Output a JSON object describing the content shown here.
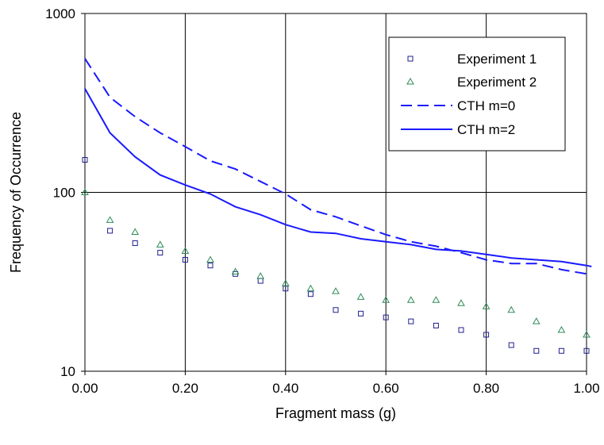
{
  "chart_data": {
    "type": "scatter",
    "xlabel": "Fragment mass (g)",
    "ylabel": "Frequency of Occurrence",
    "xlim": [
      0,
      1
    ],
    "ylim": [
      10,
      1000
    ],
    "yscale": "log",
    "x_ticks": [
      "0.00",
      "0.20",
      "0.40",
      "0.60",
      "0.80",
      "1.00"
    ],
    "y_ticks": [
      "10",
      "100",
      "1000"
    ],
    "grid": true,
    "legend_position": "top-right",
    "series": [
      {
        "name": "Experiment 1",
        "kind": "markers",
        "marker": "square",
        "color": "#1f1f8f",
        "x": [
          0.0,
          0.05,
          0.1,
          0.15,
          0.2,
          0.25,
          0.3,
          0.35,
          0.4,
          0.45,
          0.5,
          0.55,
          0.6,
          0.65,
          0.7,
          0.75,
          0.8,
          0.85,
          0.9,
          0.95,
          1.0
        ],
        "y": [
          152,
          61,
          52,
          46,
          42,
          39,
          35,
          32,
          29,
          27,
          22,
          21,
          20,
          19,
          18,
          17,
          16,
          14,
          13,
          13,
          13
        ]
      },
      {
        "name": "Experiment 2",
        "kind": "markers",
        "marker": "triangle",
        "color": "#2e8b57",
        "x": [
          0.0,
          0.05,
          0.1,
          0.15,
          0.2,
          0.25,
          0.3,
          0.35,
          0.4,
          0.45,
          0.5,
          0.55,
          0.6,
          0.65,
          0.7,
          0.75,
          0.8,
          0.85,
          0.9,
          0.95,
          1.0
        ],
        "y": [
          100,
          70,
          60,
          51,
          47,
          42,
          36,
          34,
          31,
          29,
          28,
          26,
          25,
          25,
          25,
          24,
          23,
          22,
          19,
          17,
          16
        ]
      },
      {
        "name": "CTH  m=0",
        "kind": "line",
        "dash": true,
        "color": "#1a1aff",
        "x": [
          0.0,
          0.05,
          0.1,
          0.15,
          0.2,
          0.25,
          0.3,
          0.35,
          0.4,
          0.45,
          0.5,
          0.55,
          0.6,
          0.65,
          0.7,
          0.75,
          0.8,
          0.85,
          0.9,
          0.95,
          1.0
        ],
        "y": [
          560,
          340,
          265,
          215,
          180,
          150,
          135,
          115,
          98,
          80,
          73,
          65,
          58,
          53,
          50,
          46,
          42,
          40,
          40,
          37,
          35
        ]
      },
      {
        "name": "CTH  m=2",
        "kind": "line",
        "dash": false,
        "color": "#1a1aff",
        "x": [
          0.0,
          0.05,
          0.1,
          0.15,
          0.2,
          0.25,
          0.3,
          0.35,
          0.4,
          0.45,
          0.5,
          0.55,
          0.6,
          0.65,
          0.7,
          0.75,
          0.8,
          0.85,
          0.9,
          0.95,
          1.0,
          1.01
        ],
        "y": [
          380,
          215,
          158,
          125,
          110,
          98,
          83,
          75,
          66,
          60,
          59,
          55,
          53,
          51,
          48,
          47,
          45,
          43,
          42,
          41,
          39,
          38.5
        ]
      }
    ]
  }
}
